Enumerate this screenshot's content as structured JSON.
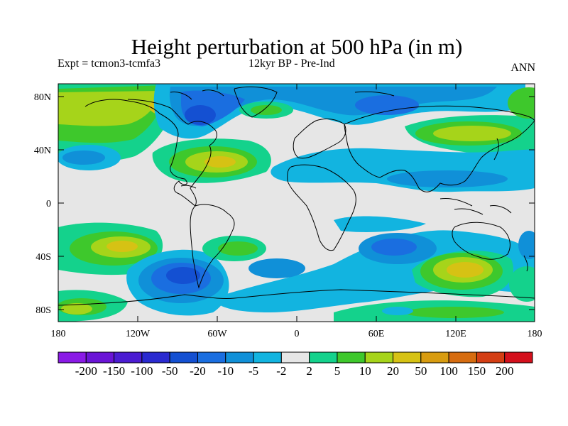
{
  "title": "Height perturbation at 500 hPa (in m)",
  "subtitle_left": "Expt = tcmon3-tcmfa3",
  "subtitle_center": "12kyr BP - Pre-Ind",
  "subtitle_right": "ANN",
  "lat_labels": [
    "80N",
    "40N",
    "0",
    "40S",
    "80S"
  ],
  "lon_labels": [
    "180",
    "120W",
    "60W",
    "0",
    "60E",
    "120E",
    "180"
  ],
  "colorbar": {
    "colors": [
      "#8a1ae6",
      "#6a14d6",
      "#4b1cd2",
      "#2a2ad0",
      "#1450d2",
      "#1a6ee0",
      "#1090d8",
      "#12b4e0",
      "#e6e6e6",
      "#14d28c",
      "#3ec82c",
      "#a6d41a",
      "#d6c214",
      "#d89c10",
      "#d66c10",
      "#d43e14",
      "#d4101c"
    ],
    "labels": [
      "-200",
      "-150",
      "-100",
      "-50",
      "-20",
      "-10",
      "-5",
      "-2",
      "2",
      "5",
      "10",
      "20",
      "50",
      "100",
      "150",
      "200"
    ]
  },
  "map_colors": {
    "neutral": "#e6e6e6",
    "pos_weak": "#14d28c",
    "pos_10": "#3ec82c",
    "pos_20": "#a6d41a",
    "pos_50": "#d6c214",
    "neg_weak": "#12b4e0",
    "neg_5": "#1090d8",
    "neg_10": "#1a6ee0",
    "neg_20": "#1450d2"
  }
}
